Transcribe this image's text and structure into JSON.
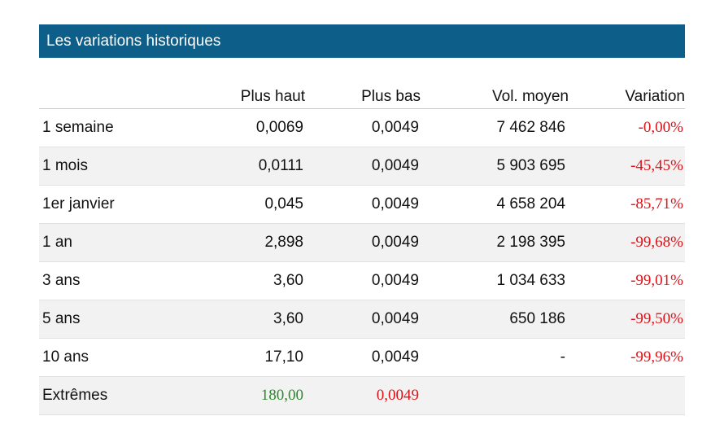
{
  "panel": {
    "title": "Les variations historiques"
  },
  "table": {
    "headers": [
      "",
      "Plus haut",
      "Plus bas",
      "Vol. moyen",
      "Variation"
    ],
    "rows": [
      {
        "period": "1 semaine",
        "high": "0,0069",
        "low": "0,0049",
        "volume": "7 462 846",
        "variation": "-0,00%"
      },
      {
        "period": "1 mois",
        "high": "0,0111",
        "low": "0,0049",
        "volume": "5 903 695",
        "variation": "-45,45%"
      },
      {
        "period": "1er janvier",
        "high": "0,045",
        "low": "0,0049",
        "volume": "4 658 204",
        "variation": "-85,71%"
      },
      {
        "period": "1 an",
        "high": "2,898",
        "low": "0,0049",
        "volume": "2 198 395",
        "variation": "-99,68%"
      },
      {
        "period": "3 ans",
        "high": "3,60",
        "low": "0,0049",
        "volume": "1 034 633",
        "variation": "-99,01%"
      },
      {
        "period": "5 ans",
        "high": "3,60",
        "low": "0,0049",
        "volume": "650 186",
        "variation": "-99,50%"
      },
      {
        "period": "10 ans",
        "high": "17,10",
        "low": "0,0049",
        "volume": "-",
        "variation": "-99,96%"
      }
    ],
    "extremes": {
      "label": "Extrêmes",
      "high": "180,00",
      "low": "0,0049"
    }
  },
  "colors": {
    "header_bg": "#0d5f8a",
    "negative": "#d9141a",
    "positive": "#2c8a2c",
    "row_alt": "#f2f2f2"
  }
}
